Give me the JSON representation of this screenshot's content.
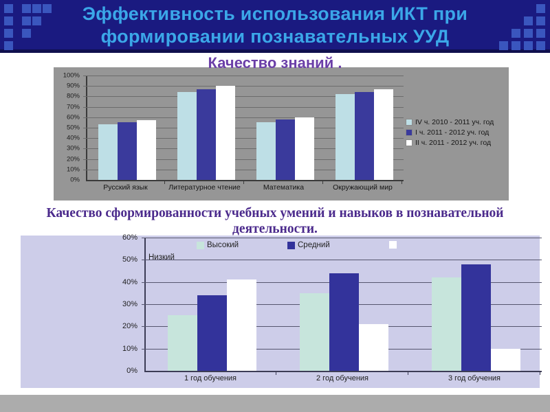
{
  "slide": {
    "header": {
      "title_line1": "Эффективность использования ИКТ при",
      "title_line2": "формировании познавательных УУД"
    },
    "subtitle": "Качество знаний .",
    "section_heading": {
      "line1": "Качество сформированности учебных умений и навыков в познавательной",
      "line2": "деятельности."
    }
  },
  "colors": {
    "header_bg": "#1A1A80",
    "header_squares": "#3A56BE",
    "title_text": "#3BA7E8",
    "subtitle_text": "#6B3FA8",
    "heading_text": "#4B2A8C",
    "chart1_bg": "#969696",
    "chart2_bg": "#CDCDE9",
    "footer_bg": "#ACACAC"
  },
  "chart_data": [
    {
      "type": "bar",
      "title": "Качество знаний .",
      "categories": [
        "Русский язык",
        "Литературное чтение",
        "Математика",
        "Окружающий мир"
      ],
      "series": [
        {
          "name": "IV ч. 2010 - 2011 уч. год",
          "color": "#BEDFE6",
          "values": [
            53,
            84,
            55,
            82
          ]
        },
        {
          "name": "I ч. 2011 - 2012 уч. год",
          "color": "#3A3A9C",
          "values": [
            55,
            87,
            58,
            84
          ]
        },
        {
          "name": "II ч. 2011 - 2012 уч. год",
          "color": "#FFFFFF",
          "values": [
            57,
            90,
            60,
            87
          ]
        }
      ],
      "xlabel": "",
      "ylabel": "",
      "ylim": [
        0,
        100
      ],
      "yticks": [
        "100%",
        "90%",
        "80%",
        "70%",
        "60%",
        "50%",
        "40%",
        "30%",
        "20%",
        "10%",
        "0%"
      ],
      "grid": true,
      "legend_position": "right",
      "plot_bg": "#969696"
    },
    {
      "type": "bar",
      "title": "Качество сформированности учебных умений и навыков в познавательной деятельности.",
      "categories": [
        "1 год обучения",
        "2 год обучения",
        "3 год обучения"
      ],
      "series": [
        {
          "name": "Высокий",
          "color": "#C7E5DC",
          "values": [
            25,
            35,
            42
          ]
        },
        {
          "name": "Средний",
          "color": "#33339B",
          "values": [
            34,
            44,
            48
          ]
        },
        {
          "name": "Низкий",
          "color": "#FFFFFF",
          "values": [
            41,
            21,
            10
          ]
        }
      ],
      "xlabel": "",
      "ylabel": "",
      "ylim": [
        0,
        60
      ],
      "yticks": [
        "60%",
        "50%",
        "40%",
        "30%",
        "20%",
        "10%",
        "0%"
      ],
      "grid": true,
      "legend_position": "top",
      "plot_bg": "#CDCDE9"
    }
  ]
}
